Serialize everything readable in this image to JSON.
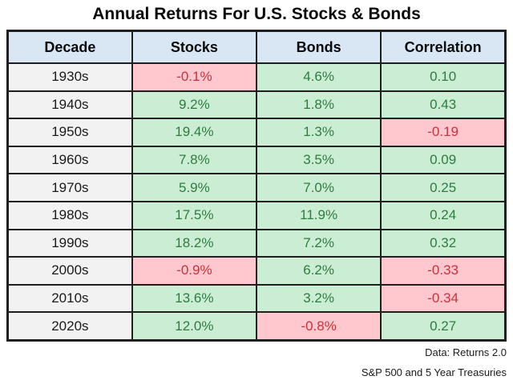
{
  "title": "Annual Returns For U.S. Stocks & Bonds",
  "table": {
    "headers": [
      "Decade",
      "Stocks",
      "Bonds",
      "Correlation"
    ],
    "rows": [
      {
        "decade": "1930s",
        "stocks": "-0.1%",
        "bonds": "4.6%",
        "correlation": "0.10"
      },
      {
        "decade": "1940s",
        "stocks": "9.2%",
        "bonds": "1.8%",
        "correlation": "0.43"
      },
      {
        "decade": "1950s",
        "stocks": "19.4%",
        "bonds": "1.3%",
        "correlation": "-0.19"
      },
      {
        "decade": "1960s",
        "stocks": "7.8%",
        "bonds": "3.5%",
        "correlation": "0.09"
      },
      {
        "decade": "1970s",
        "stocks": "5.9%",
        "bonds": "7.0%",
        "correlation": "0.25"
      },
      {
        "decade": "1980s",
        "stocks": "17.5%",
        "bonds": "11.9%",
        "correlation": "0.24"
      },
      {
        "decade": "1990s",
        "stocks": "18.2%",
        "bonds": "7.2%",
        "correlation": "0.32"
      },
      {
        "decade": "2000s",
        "stocks": "-0.9%",
        "bonds": "6.2%",
        "correlation": "-0.33"
      },
      {
        "decade": "2010s",
        "stocks": "13.6%",
        "bonds": "3.2%",
        "correlation": "-0.34"
      },
      {
        "decade": "2020s",
        "stocks": "12.0%",
        "bonds": "-0.8%",
        "correlation": "0.27"
      }
    ]
  },
  "footer": {
    "source_note": "Data: Returns 2.0",
    "series_note": "S&P 500 and 5 Year Treasuries"
  },
  "colors": {
    "positive_bg": "#cbedd4",
    "negative_bg": "#ffc7ce",
    "positive_text": "#2e7d40",
    "negative_text": "#c9323e",
    "header_bg": "#d9e7f5",
    "decade_bg": "#f2f2f2",
    "border": "#1f1f1f"
  },
  "chart_data": {
    "type": "table",
    "title": "Annual Returns For U.S. Stocks & Bonds",
    "columns": [
      "Decade",
      "Stocks",
      "Bonds",
      "Correlation"
    ],
    "rows": [
      [
        "1930s",
        -0.1,
        4.6,
        0.1
      ],
      [
        "1940s",
        9.2,
        1.8,
        0.43
      ],
      [
        "1950s",
        19.4,
        1.3,
        -0.19
      ],
      [
        "1960s",
        7.8,
        3.5,
        0.09
      ],
      [
        "1970s",
        5.9,
        7.0,
        0.25
      ],
      [
        "1980s",
        17.5,
        11.9,
        0.24
      ],
      [
        "1990s",
        18.2,
        7.2,
        0.32
      ],
      [
        "2000s",
        -0.9,
        6.2,
        -0.33
      ],
      [
        "2010s",
        13.6,
        3.2,
        -0.34
      ],
      [
        "2020s",
        12.0,
        -0.8,
        0.27
      ]
    ],
    "units": {
      "Stocks": "percent annual return",
      "Bonds": "percent annual return",
      "Correlation": "coefficient"
    },
    "color_coding": "green background = positive value, pink background = negative value",
    "annotations": [
      "Data: Returns 2.0",
      "S&P 500 and 5 Year Treasuries"
    ]
  }
}
